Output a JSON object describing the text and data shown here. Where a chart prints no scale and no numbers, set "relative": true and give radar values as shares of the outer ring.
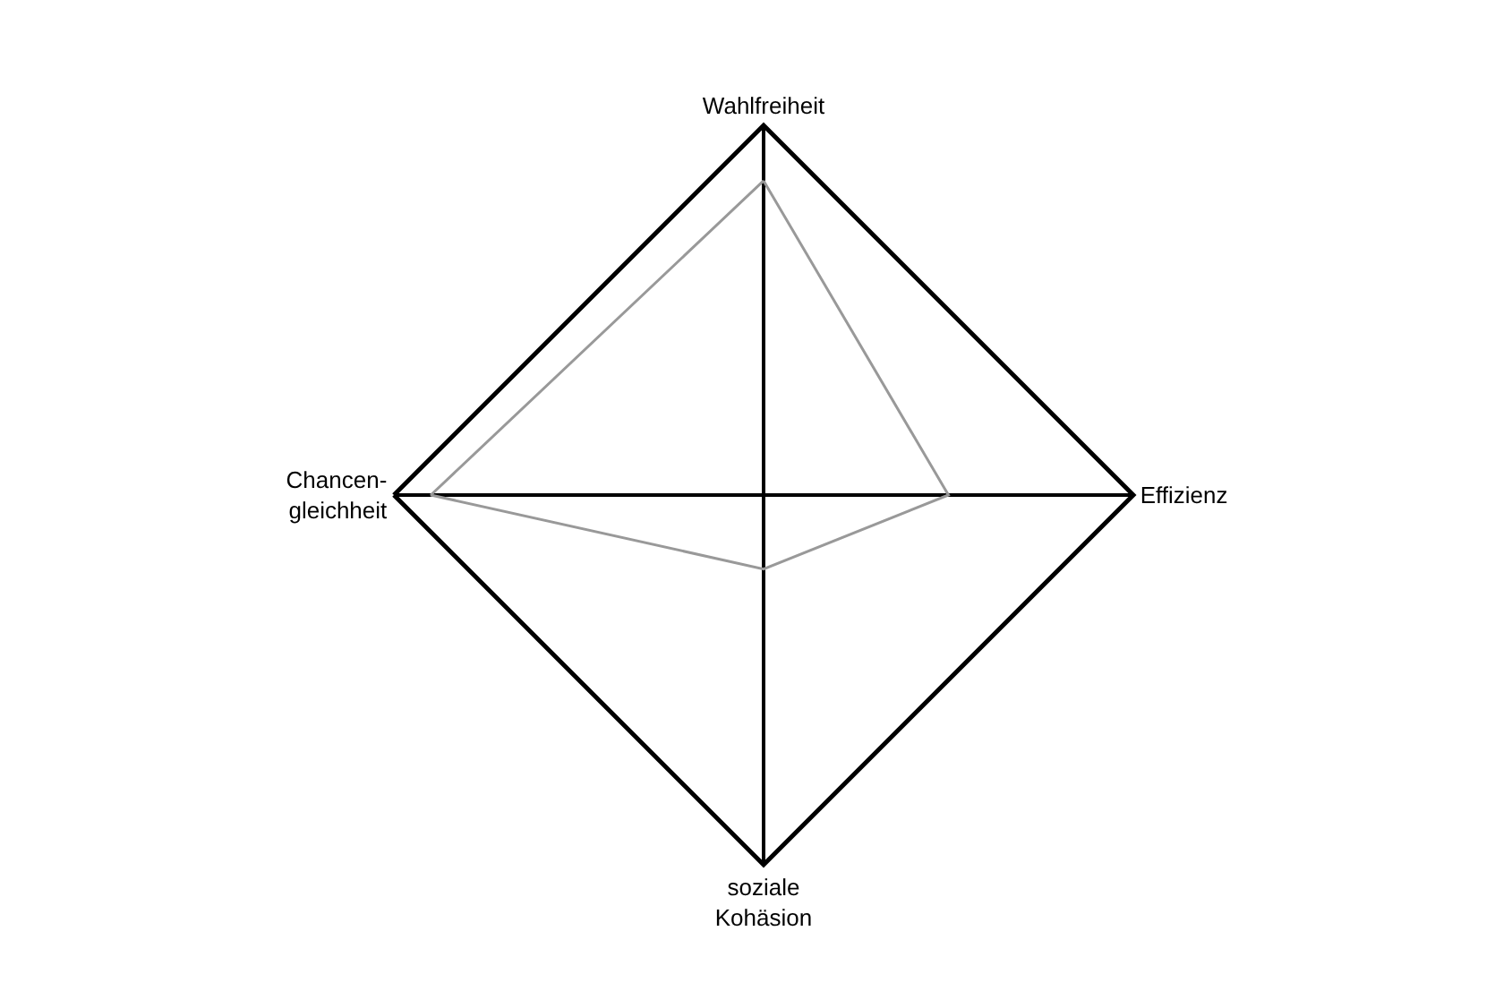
{
  "chart_data": {
    "type": "radar",
    "relative": true,
    "grid": true,
    "marker": "none",
    "categories": [
      "Wahlfreiheit",
      "Effizienz",
      "soziale\nKohäsion",
      "Chancen-\ngleichheit"
    ],
    "series": [
      {
        "color": "#999999",
        "values": [
          0.85,
          0.5,
          0.2,
          0.9
        ]
      }
    ]
  }
}
